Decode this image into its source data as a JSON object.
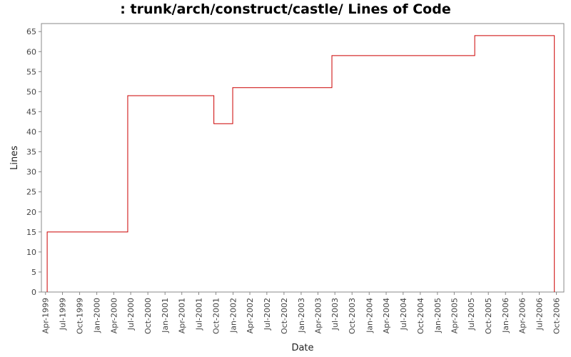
{
  "chart_data": {
    "type": "line",
    "title": ": trunk/arch/construct/castle/ Lines of Code",
    "xlabel": "Date",
    "ylabel": "Lines",
    "step": true,
    "x_tick_labels": [
      "Apr-1999",
      "Jul-1999",
      "Oct-1999",
      "Jan-2000",
      "Apr-2000",
      "Jul-2000",
      "Oct-2000",
      "Jan-2001",
      "Apr-2001",
      "Jul-2001",
      "Oct-2001",
      "Jan-2002",
      "Apr-2002",
      "Jul-2002",
      "Oct-2002",
      "Jan-2003",
      "Apr-2003",
      "Jul-2003",
      "Oct-2003",
      "Jan-2004",
      "Apr-2004",
      "Jul-2004",
      "Oct-2004",
      "Jan-2005",
      "Apr-2005",
      "Jul-2005",
      "Oct-2005",
      "Jan-2006",
      "Apr-2006",
      "Jul-2006",
      "Oct-2006"
    ],
    "y_ticks": [
      0,
      5,
      10,
      15,
      20,
      25,
      30,
      35,
      40,
      45,
      50,
      55,
      60,
      65
    ],
    "ylim": [
      0,
      67
    ],
    "xlim": [
      "1999-03-10",
      "2006-11-10"
    ],
    "grid": false,
    "series": [
      {
        "color": "#cc0000",
        "points": [
          {
            "x": "1999-04-10",
            "y": 0
          },
          {
            "x": "1999-04-10",
            "y": 15
          },
          {
            "x": "2000-06-15",
            "y": 49
          },
          {
            "x": "2001-09-20",
            "y": 42
          },
          {
            "x": "2001-12-30",
            "y": 51
          },
          {
            "x": "2003-06-15",
            "y": 59
          },
          {
            "x": "2005-07-20",
            "y": 64
          },
          {
            "x": "2006-09-20",
            "y": 0
          }
        ]
      }
    ]
  }
}
